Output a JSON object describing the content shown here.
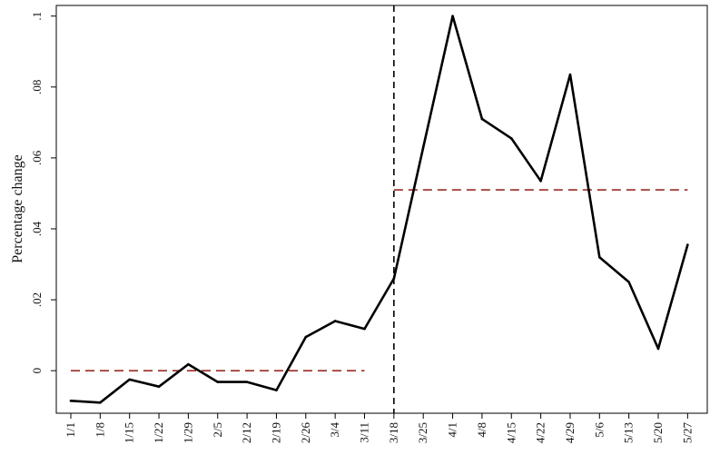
{
  "chart_data": {
    "type": "line",
    "title": "",
    "xlabel": "",
    "ylabel": "Percentage change",
    "categories": [
      "1/1",
      "1/8",
      "1/15",
      "1/22",
      "1/29",
      "2/5",
      "2/12",
      "2/19",
      "2/26",
      "3/4",
      "3/11",
      "3/18",
      "3/25",
      "4/1",
      "4/8",
      "4/15",
      "4/22",
      "4/29",
      "5/6",
      "5/13",
      "5/20",
      "5/27"
    ],
    "series": [
      {
        "values": [
          -0.0085,
          -0.009,
          -0.0025,
          -0.0045,
          0.0018,
          -0.0032,
          -0.0032,
          -0.0055,
          0.0095,
          0.014,
          0.0118,
          0.026,
          0.063,
          0.1,
          0.071,
          0.0655,
          0.0535,
          0.0835,
          0.032,
          0.025,
          0.0062,
          0.0355
        ],
        "color": "#000000"
      }
    ],
    "reference_lines": [
      {
        "kind": "vertical",
        "at_category": "3/18",
        "style": "dashed",
        "color": "#000000"
      },
      {
        "kind": "horizontal",
        "value": 0.0,
        "from_category": "1/1",
        "to_category": "3/11",
        "style": "dashed",
        "color": "#9b2b24"
      },
      {
        "kind": "horizontal",
        "value": 0.051,
        "from_category": "3/18",
        "to_category": "5/27",
        "style": "dashed",
        "color": "#9b2b24"
      }
    ],
    "y_ticks": [
      {
        "value": 0.0,
        "label": "0"
      },
      {
        "value": 0.02,
        "label": ".02"
      },
      {
        "value": 0.04,
        "label": ".04"
      },
      {
        "value": 0.06,
        "label": ".06"
      },
      {
        "value": 0.08,
        "label": ".08"
      },
      {
        "value": 0.1,
        "label": ".1"
      }
    ],
    "ylim": [
      -0.012,
      0.103
    ],
    "grid": false,
    "legend": "none"
  }
}
